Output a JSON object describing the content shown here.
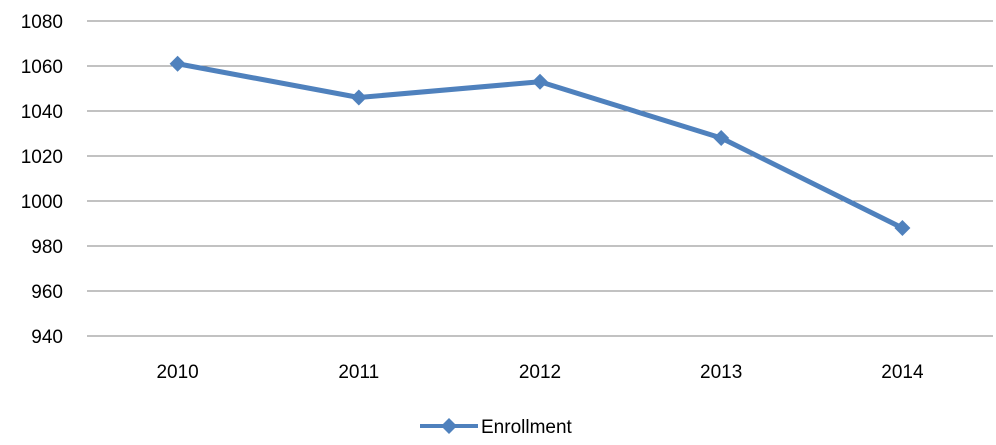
{
  "chart_data": {
    "type": "line",
    "categories": [
      "2010",
      "2011",
      "2012",
      "2013",
      "2014"
    ],
    "series": [
      {
        "name": "Enrollment",
        "values": [
          1061,
          1046,
          1053,
          1028,
          988
        ],
        "color": "#4f81bd",
        "marker": "diamond"
      }
    ],
    "yticks": [
      "940",
      "960",
      "980",
      "1000",
      "1020",
      "1040",
      "1060",
      "1080"
    ],
    "ylim": [
      940,
      1080
    ],
    "grid": true,
    "legend_position": "bottom",
    "title": "",
    "xlabel": "",
    "ylabel": ""
  }
}
